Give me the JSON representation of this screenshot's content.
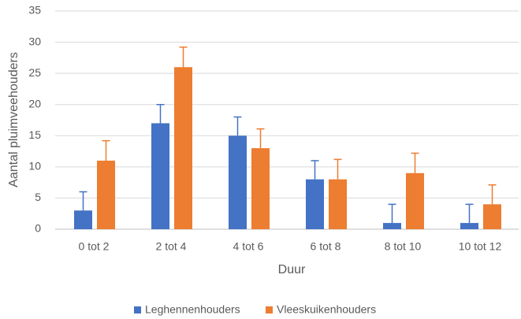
{
  "chart_data": {
    "type": "bar",
    "x_label": "Duur",
    "y_label": "Aantal pluimveehouders",
    "categories": [
      "0 tot 2",
      "2 tot 4",
      "4 tot 6",
      "6 tot 8",
      "8 tot 10",
      "10 tot 12"
    ],
    "series": [
      {
        "name": "Leghennenhouders",
        "color": "#4472c4",
        "values": [
          3,
          17,
          15,
          8,
          1,
          1
        ],
        "errors": [
          3,
          3,
          3,
          3,
          3,
          3
        ]
      },
      {
        "name": "Vleeskuikenhouders",
        "color": "#ed7d31",
        "values": [
          11,
          26,
          13,
          8,
          9,
          4
        ],
        "errors": [
          3.2,
          3.2,
          3.1,
          3.2,
          3.2,
          3.1
        ]
      }
    ],
    "ylim": [
      0,
      35
    ],
    "yticks": [
      0,
      5,
      10,
      15,
      20,
      25,
      30,
      35
    ],
    "grid": true,
    "legend": "bottom"
  }
}
